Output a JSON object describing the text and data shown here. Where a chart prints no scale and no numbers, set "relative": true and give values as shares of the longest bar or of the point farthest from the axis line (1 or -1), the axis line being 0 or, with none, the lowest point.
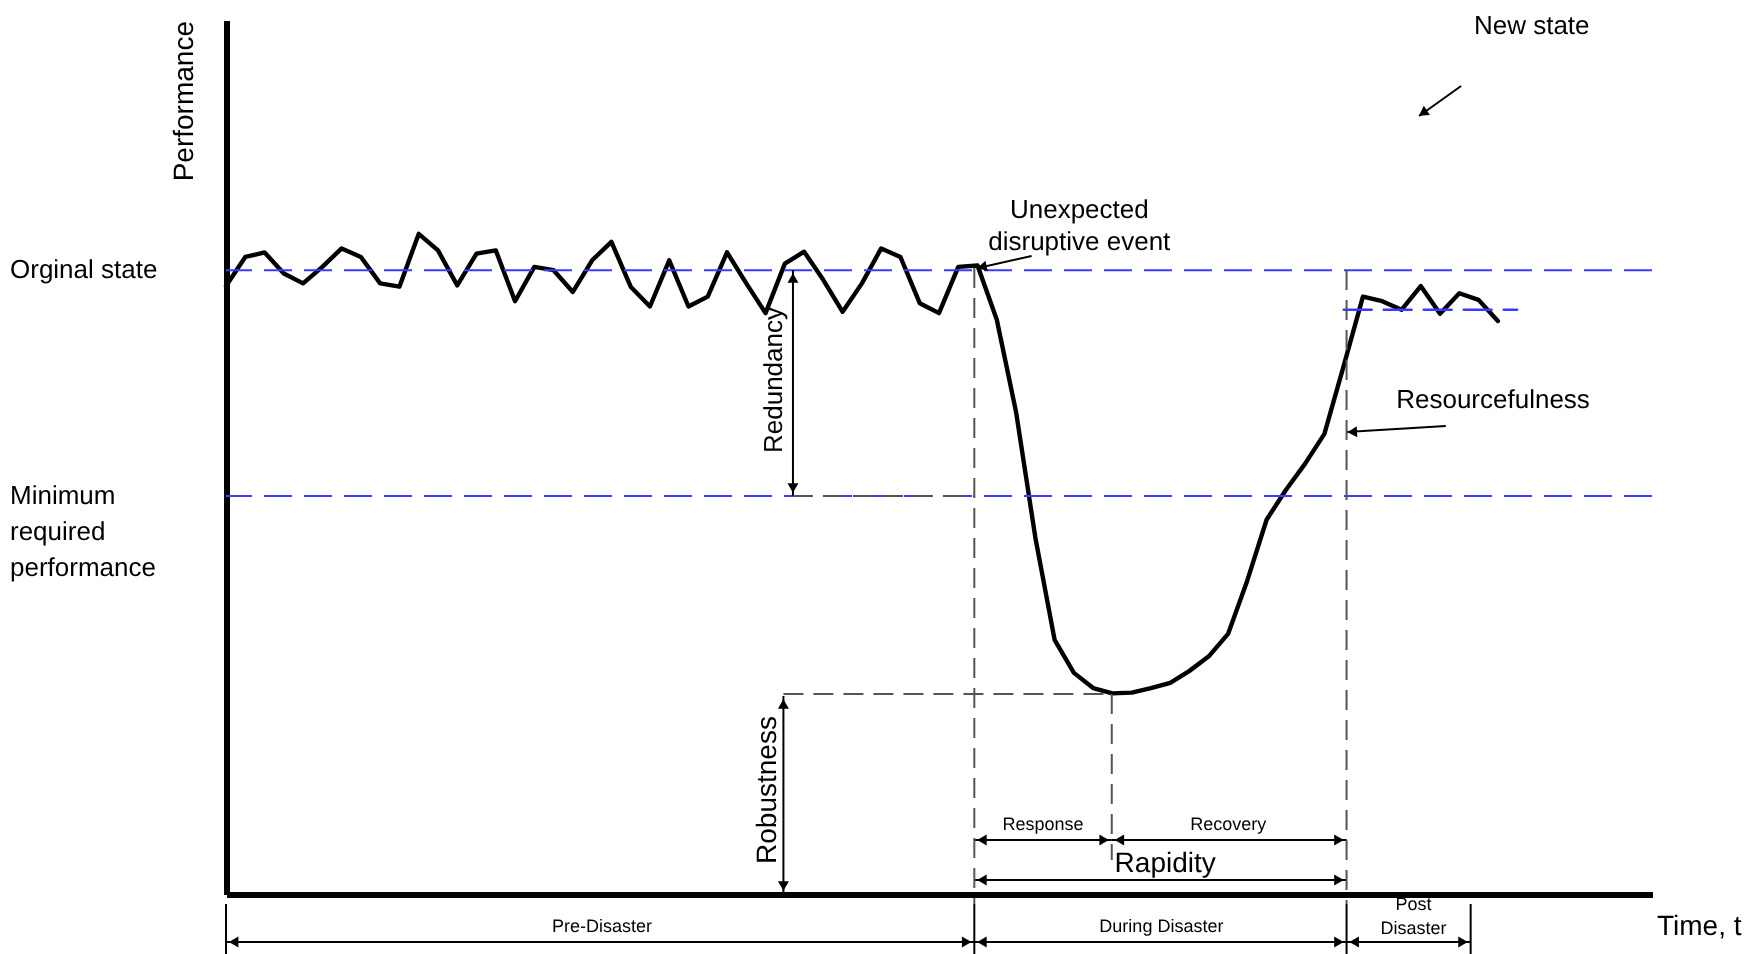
{
  "chart_data": {
    "type": "line",
    "relative": true,
    "xlabel": "Time, t",
    "ylabel": "Performance",
    "marker": "none",
    "categories": [
      null,
      null,
      null,
      null,
      null,
      null,
      null,
      null,
      null,
      null,
      null,
      null,
      null,
      null,
      null,
      null,
      null,
      null,
      null,
      null,
      null,
      null,
      null,
      null,
      null,
      null,
      null,
      null,
      null,
      null,
      null,
      null,
      null,
      null,
      null,
      null,
      null,
      null,
      null,
      null,
      null,
      null,
      null,
      null,
      null,
      null,
      null,
      null,
      null,
      null,
      null,
      null,
      null,
      null,
      null,
      null,
      null,
      null,
      null,
      null,
      null,
      null,
      null,
      null,
      null,
      null,
      null,
      null,
      null,
      null,
      null,
      null,
      null,
      null,
      null
    ],
    "series": [
      {
        "color": "#000000",
        "line_style": "solid",
        "values": [
          0.921,
          0.965,
          0.972,
          0.94,
          0.925,
          0.95,
          0.978,
          0.965,
          0.925,
          0.92,
          1.0,
          0.975,
          0.922,
          0.97,
          0.975,
          0.898,
          0.95,
          0.945,
          0.912,
          0.96,
          0.988,
          0.92,
          0.89,
          0.96,
          0.89,
          0.905,
          0.972,
          0.925,
          0.88,
          0.955,
          0.973,
          0.93,
          0.882,
          0.925,
          0.978,
          0.965,
          0.895,
          0.88,
          0.95,
          0.952,
          0.87,
          0.73,
          0.54,
          0.385,
          0.335,
          0.312,
          0.304,
          0.305,
          0.312,
          0.32,
          0.338,
          0.36,
          0.394,
          0.475,
          0.567,
          0.612,
          0.652,
          0.697,
          0.8,
          0.905,
          0.898,
          0.885,
          0.921,
          0.879,
          0.91,
          0.9,
          0.868,
          null,
          null,
          null,
          null,
          null,
          null,
          null,
          null
        ]
      },
      {
        "color": "#3b3bff",
        "line_style": "dashed",
        "values": [
          null,
          null,
          null,
          null,
          null,
          null,
          null,
          null,
          null,
          null,
          null,
          null,
          null,
          null,
          null,
          null,
          null,
          null,
          null,
          null,
          null,
          null,
          null,
          null,
          null,
          null,
          null,
          null,
          null,
          null,
          null,
          null,
          null,
          null,
          null,
          null,
          null,
          null,
          null,
          null,
          null,
          null,
          null,
          null,
          null,
          null,
          null,
          null,
          null,
          null,
          null,
          null,
          null,
          null,
          null,
          null,
          null,
          null,
          0.885,
          0.885,
          0.885,
          0.885,
          0.885,
          0.885,
          0.885,
          0.885,
          0.885,
          0.885,
          null,
          null,
          null,
          null,
          null,
          null,
          null
        ]
      }
    ],
    "ref_lines": [
      {
        "axis": "y",
        "value": 0.945,
        "label": "Orginal state",
        "color": "#3b3bff",
        "line_style": "dashed"
      },
      {
        "axis": "y",
        "value": 0.603,
        "label": "Minimum required performance",
        "color": "#3b3bff",
        "line_style": "dashed"
      }
    ],
    "annotations": [
      "Unexpected disruptive event",
      "New state",
      "Resourcefulness",
      "Redundancy",
      "Robustness",
      "Response",
      "Recovery",
      "Rapidity",
      "Pre-Disaster",
      "During Disaster",
      "Post Disaster"
    ]
  }
}
